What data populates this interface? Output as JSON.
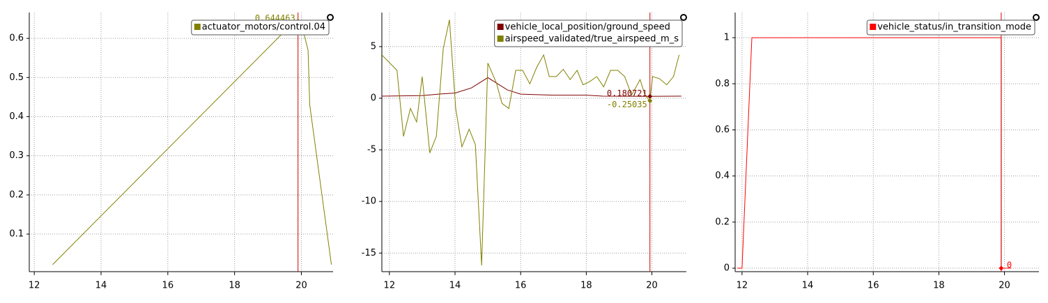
{
  "chart_data": [
    {
      "type": "line",
      "xlim": [
        11.85,
        20.95
      ],
      "ylim": [
        0.004,
        0.666
      ],
      "xticks": [
        12,
        14,
        16,
        18,
        20
      ],
      "yticks": [
        0.1,
        0.2,
        0.3,
        0.4,
        0.5,
        0.6
      ],
      "grid": true,
      "legend": "top-right",
      "series": [
        {
          "name": "actuator_motors/control.04",
          "color": "#808000",
          "x": [
            12.55,
            19.8,
            20.05,
            20.2,
            20.25,
            20.9
          ],
          "values": [
            0.022,
            0.644,
            0.62,
            0.57,
            0.43,
            0.022
          ]
        }
      ],
      "cursor_x": 19.9,
      "cursor_labels": [
        "0.644463"
      ],
      "cursor_label_side": "left"
    },
    {
      "type": "line",
      "xlim": [
        11.77,
        21.05
      ],
      "ylim": [
        -16.8,
        8.3
      ],
      "xticks": [
        12,
        14,
        16,
        18,
        20
      ],
      "yticks": [
        5,
        0,
        -5,
        -10,
        -15
      ],
      "grid": true,
      "legend": "top-right",
      "series": [
        {
          "name": "vehicle_local_position/ground_speed",
          "color": "#800000",
          "x": [
            11.77,
            13.0,
            13.5,
            14.0,
            14.5,
            15.0,
            15.3,
            15.6,
            16.0,
            17.0,
            18.0,
            18.5,
            19.94,
            20.9
          ],
          "values": [
            0.2,
            0.25,
            0.4,
            0.5,
            1.0,
            2.0,
            1.4,
            0.8,
            0.4,
            0.3,
            0.3,
            0.2,
            0.18,
            0.2
          ]
        },
        {
          "name": "airspeed_validated/true_airspeed_m_s",
          "color": "#808000",
          "x": [
            11.77,
            12.23,
            12.43,
            12.64,
            12.83,
            13.0,
            13.23,
            13.43,
            13.64,
            13.83,
            14.02,
            14.21,
            14.43,
            14.62,
            14.81,
            15.0,
            15.26,
            15.43,
            15.64,
            15.85,
            16.06,
            16.28,
            16.49,
            16.7,
            16.87,
            17.09,
            17.3,
            17.51,
            17.72,
            17.9,
            18.1,
            18.32,
            18.53,
            18.74,
            18.96,
            19.17,
            19.38,
            19.64,
            19.79,
            19.94,
            20.02,
            20.23,
            20.45,
            20.66,
            20.83
          ],
          "values": [
            4.2,
            2.7,
            -3.7,
            -1.0,
            -2.3,
            2.1,
            -5.3,
            -3.7,
            4.8,
            7.6,
            -1.0,
            -4.7,
            -3.0,
            -4.5,
            -16.2,
            3.4,
            1.5,
            -0.5,
            -1.0,
            2.7,
            2.7,
            1.4,
            3.0,
            4.2,
            2.1,
            2.1,
            2.8,
            1.8,
            2.7,
            1.3,
            1.6,
            2.1,
            1.1,
            2.7,
            2.7,
            2.1,
            0.3,
            1.8,
            0.3,
            -0.25,
            2.1,
            1.9,
            1.3,
            2.1,
            4.2
          ]
        }
      ],
      "cursor_x": 19.94,
      "cursor_labels": [
        "0.180721",
        "-0.25035"
      ],
      "cursor_label_side": "left"
    },
    {
      "type": "line",
      "xlim": [
        11.79,
        21.05
      ],
      "ylim": [
        -0.015,
        1.109
      ],
      "xticks": [
        12,
        14,
        16,
        18,
        20
      ],
      "yticks": [
        0,
        0.2,
        0.4,
        0.6,
        0.8,
        1
      ],
      "grid": true,
      "legend": "top-right",
      "series": [
        {
          "name": "vehicle_status/in_transition_mode",
          "color": "#ff0000",
          "x": [
            11.85,
            12.0,
            12.3,
            19.9,
            19.9,
            20.2
          ],
          "values": [
            0,
            0,
            1,
            1,
            0,
            0
          ]
        }
      ],
      "cursor_x": 19.9,
      "cursor_labels": [
        "0"
      ],
      "cursor_label_side": "right"
    }
  ]
}
